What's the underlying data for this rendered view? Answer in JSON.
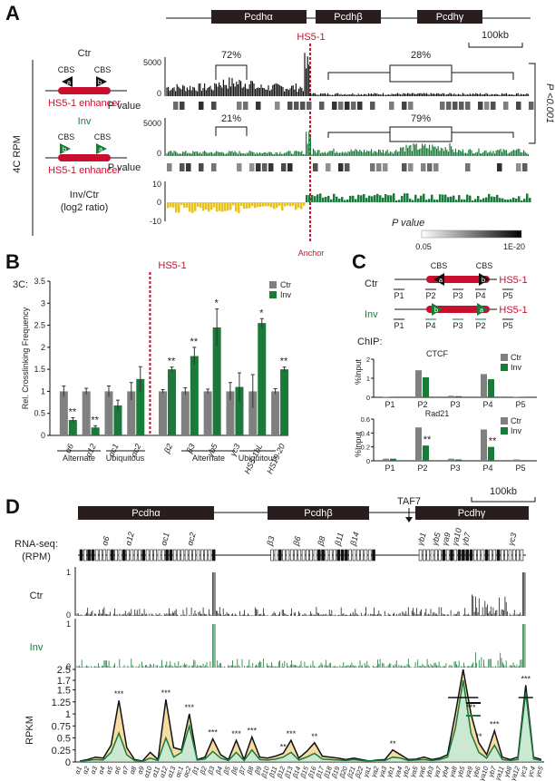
{
  "panel_a": {
    "letter": "A",
    "clusters": [
      "Pcdhα",
      "Pcdhβ",
      "Pcdhγ"
    ],
    "scale": "100kb",
    "hs": "HS5-1",
    "ctr": "Ctr",
    "inv": "Inv",
    "cbs": "CBS",
    "site_a": "a",
    "site_b": "b",
    "enhancer": "HS5-1 enhancer",
    "y_axis": "4C RPM",
    "tick_5000": "5000",
    "tick_0": "0",
    "pvalue": "P value",
    "ctr_left_pct": "72%",
    "ctr_right_pct": "28%",
    "inv_left_pct": "21%",
    "inv_right_pct": "79%",
    "ratio_label_1": "Inv/Ctr",
    "ratio_label_2": "(log2 ratio)",
    "r_ticks": [
      "10",
      "0",
      "-10"
    ],
    "anchor": "Anchor",
    "p_legend_low": "0.05",
    "p_legend_high": "1E-20",
    "p_sig": "P <0.001"
  },
  "panel_b": {
    "letter": "B",
    "assay": "3C:",
    "hs": "HS5-1",
    "ylabel": "Rel. Crosslinking Frequency",
    "legend": [
      "Ctr",
      "Inv"
    ],
    "groups": [
      "Alternate",
      "Ubiquitous",
      "Alternate",
      "Ubiquitous"
    ],
    "chart_data": {
      "type": "bar",
      "categories": [
        "α6",
        "α12",
        "αc1",
        "αc2",
        "β2",
        "β3",
        "γb5",
        "γc3",
        "HS5-1bL",
        "HS19-20"
      ],
      "series": [
        {
          "name": "Ctr",
          "values": [
            1.0,
            1.0,
            1.0,
            1.0,
            1.0,
            1.0,
            1.0,
            1.0,
            1.0,
            1.0
          ],
          "err": [
            0.12,
            0.07,
            0.12,
            0.2,
            0.04,
            0.08,
            0.05,
            0.2,
            0.38,
            0.06
          ]
        },
        {
          "name": "Inv",
          "values": [
            0.35,
            0.18,
            0.68,
            1.28,
            1.5,
            1.8,
            2.45,
            1.1,
            2.55,
            1.5
          ],
          "err": [
            0.05,
            0.04,
            0.12,
            0.28,
            0.05,
            0.2,
            0.42,
            0.32,
            0.1,
            0.05
          ]
        }
      ],
      "significance": [
        "**",
        "**",
        "",
        "",
        "**",
        "**",
        "*",
        "",
        "*",
        "**"
      ],
      "ylim": [
        0,
        3.5
      ],
      "yticks": [
        "0",
        "0.5",
        "1",
        "1.5",
        "2",
        "2.5",
        "3",
        "3.5"
      ],
      "ylabel": "Rel. Crosslinking Frequency"
    }
  },
  "panel_c": {
    "letter": "C",
    "ctr": "Ctr",
    "inv": "Inv",
    "cbs": "CBS",
    "site_a": "a",
    "site_b": "b",
    "hs": "HS5-1",
    "primers": [
      "P1",
      "P2",
      "P3",
      "P4",
      "P5"
    ],
    "chip": "ChIP:",
    "ylabel": "%Input",
    "legend": [
      "Ctr",
      "Inv"
    ],
    "ctcf": {
      "title": "CTCF",
      "chart_data": {
        "type": "bar",
        "categories": [
          "P1",
          "P2",
          "P3",
          "P4",
          "P5"
        ],
        "series": [
          {
            "name": "Ctr",
            "values": [
              0.02,
              1.42,
              0.08,
              1.22,
              0.02
            ]
          },
          {
            "name": "Inv",
            "values": [
              0.03,
              1.05,
              0.06,
              0.95,
              0.01
            ]
          }
        ],
        "ylim": [
          0,
          2.0
        ],
        "yticks": [
          "0",
          "1",
          "2"
        ]
      }
    },
    "rad21": {
      "title": "Rad21",
      "chart_data": {
        "type": "bar",
        "categories": [
          "P1",
          "P2",
          "P3",
          "P4",
          "P5"
        ],
        "series": [
          {
            "name": "Ctr",
            "values": [
              0.03,
              0.48,
              0.03,
              0.45,
              0.02
            ]
          },
          {
            "name": "Inv",
            "values": [
              0.03,
              0.22,
              0.02,
              0.2,
              0.01
            ]
          }
        ],
        "significance": [
          "",
          "**",
          "",
          "**",
          ""
        ],
        "ylim": [
          0,
          0.6
        ],
        "yticks": [
          "0",
          "0.2",
          "0.4",
          "0.6"
        ]
      }
    }
  },
  "panel_d": {
    "letter": "D",
    "clusters": [
      "Pcdhα",
      "Pcdhβ",
      "Pcdhγ"
    ],
    "taf7": "TAF7",
    "scale": "100kb",
    "rnaseq": "RNA-seq:",
    "rpm": "(RPM)",
    "ctr": "Ctr",
    "inv": "Inv",
    "ylabel": "RPKM",
    "tick_1": "1",
    "tick_0": "0",
    "gene_labels_top": [
      "α6",
      "α12",
      "αc1",
      "αc2",
      "β3",
      "β6",
      "β8",
      "β11",
      "β14",
      "γb1",
      "γb5",
      "γa9",
      "γa10",
      "γb7",
      "γc3"
    ],
    "chart_data": {
      "type": "line",
      "x": [
        "α1",
        "α2",
        "α3",
        "α4",
        "α5",
        "α6",
        "α7",
        "α8",
        "α9",
        "α10",
        "α11",
        "α12",
        "α13",
        "αc1",
        "αc2",
        "β1",
        "β2",
        "β3",
        "β4",
        "β5",
        "β6",
        "β7",
        "β8",
        "β9",
        "β10",
        "β11",
        "β12",
        "β13",
        "β14",
        "β15",
        "β16",
        "β17",
        "β18",
        "β19",
        "β20",
        "β21",
        "β22",
        "γa1",
        "γa2",
        "γa3",
        "γb1",
        "γa4",
        "γb2",
        "γa5",
        "γa6",
        "γb3",
        "γa7",
        "γb4",
        "γa8",
        "γb5",
        "γa9",
        "γb6",
        "γa10",
        "γb7",
        "γa11",
        "γb8",
        "γa12",
        "γc3",
        "γc4",
        "γc5"
      ],
      "series": [
        {
          "name": "Ctr",
          "values": [
            0.02,
            0.05,
            0.1,
            0.08,
            0.35,
            1.28,
            0.3,
            0.05,
            0.02,
            0.2,
            0.05,
            1.3,
            0.3,
            0.25,
            1.0,
            0.05,
            0.1,
            0.48,
            0.15,
            0.05,
            0.45,
            0.05,
            0.52,
            0.1,
            0.08,
            0.12,
            0.18,
            0.45,
            0.08,
            0.22,
            0.4,
            0.12,
            0.1,
            0.08,
            0.05,
            0.08,
            0.05,
            0.02,
            0.04,
            0.05,
            0.25,
            0.15,
            0.05,
            0.06,
            0.1,
            0.05,
            0.08,
            0.15,
            1.0,
            2.5,
            1.0,
            0.4,
            0.15,
            0.65,
            0.1,
            0.05,
            0.1,
            1.6,
            0.1,
            0.05
          ]
        },
        {
          "name": "Inv",
          "values": [
            0.01,
            0.03,
            0.05,
            0.04,
            0.2,
            0.6,
            0.15,
            0.03,
            0.01,
            0.08,
            0.03,
            0.5,
            0.1,
            0.2,
            0.75,
            0.04,
            0.06,
            0.22,
            0.08,
            0.03,
            0.2,
            0.03,
            0.25,
            0.05,
            0.04,
            0.06,
            0.1,
            0.2,
            0.04,
            0.1,
            0.18,
            0.06,
            0.05,
            0.04,
            0.03,
            0.05,
            0.03,
            0.02,
            0.03,
            0.03,
            0.1,
            0.08,
            0.03,
            0.04,
            0.05,
            0.03,
            0.05,
            0.1,
            0.7,
            1.7,
            0.6,
            0.2,
            0.08,
            0.35,
            0.05,
            0.03,
            0.05,
            1.45,
            0.06,
            0.03
          ]
        }
      ],
      "red_labels": [
        "α6",
        "α12",
        "αc2",
        "β3",
        "β6",
        "β8",
        "β16",
        "β9",
        "β10",
        "β11",
        "β14",
        "β12",
        "β13",
        "β19",
        "γb1",
        "γa4",
        "γa5",
        "γa9",
        "γa10",
        "γb7",
        "γb6",
        "γa12",
        "γc3"
      ],
      "yticks": [
        "0",
        "0.25",
        "0.5",
        "0.75",
        "1",
        "1.25",
        "1.5",
        "1.7",
        "2.5"
      ],
      "ylabel": "RPKM",
      "legend": [
        "Ctr",
        "Inv"
      ]
    }
  }
}
